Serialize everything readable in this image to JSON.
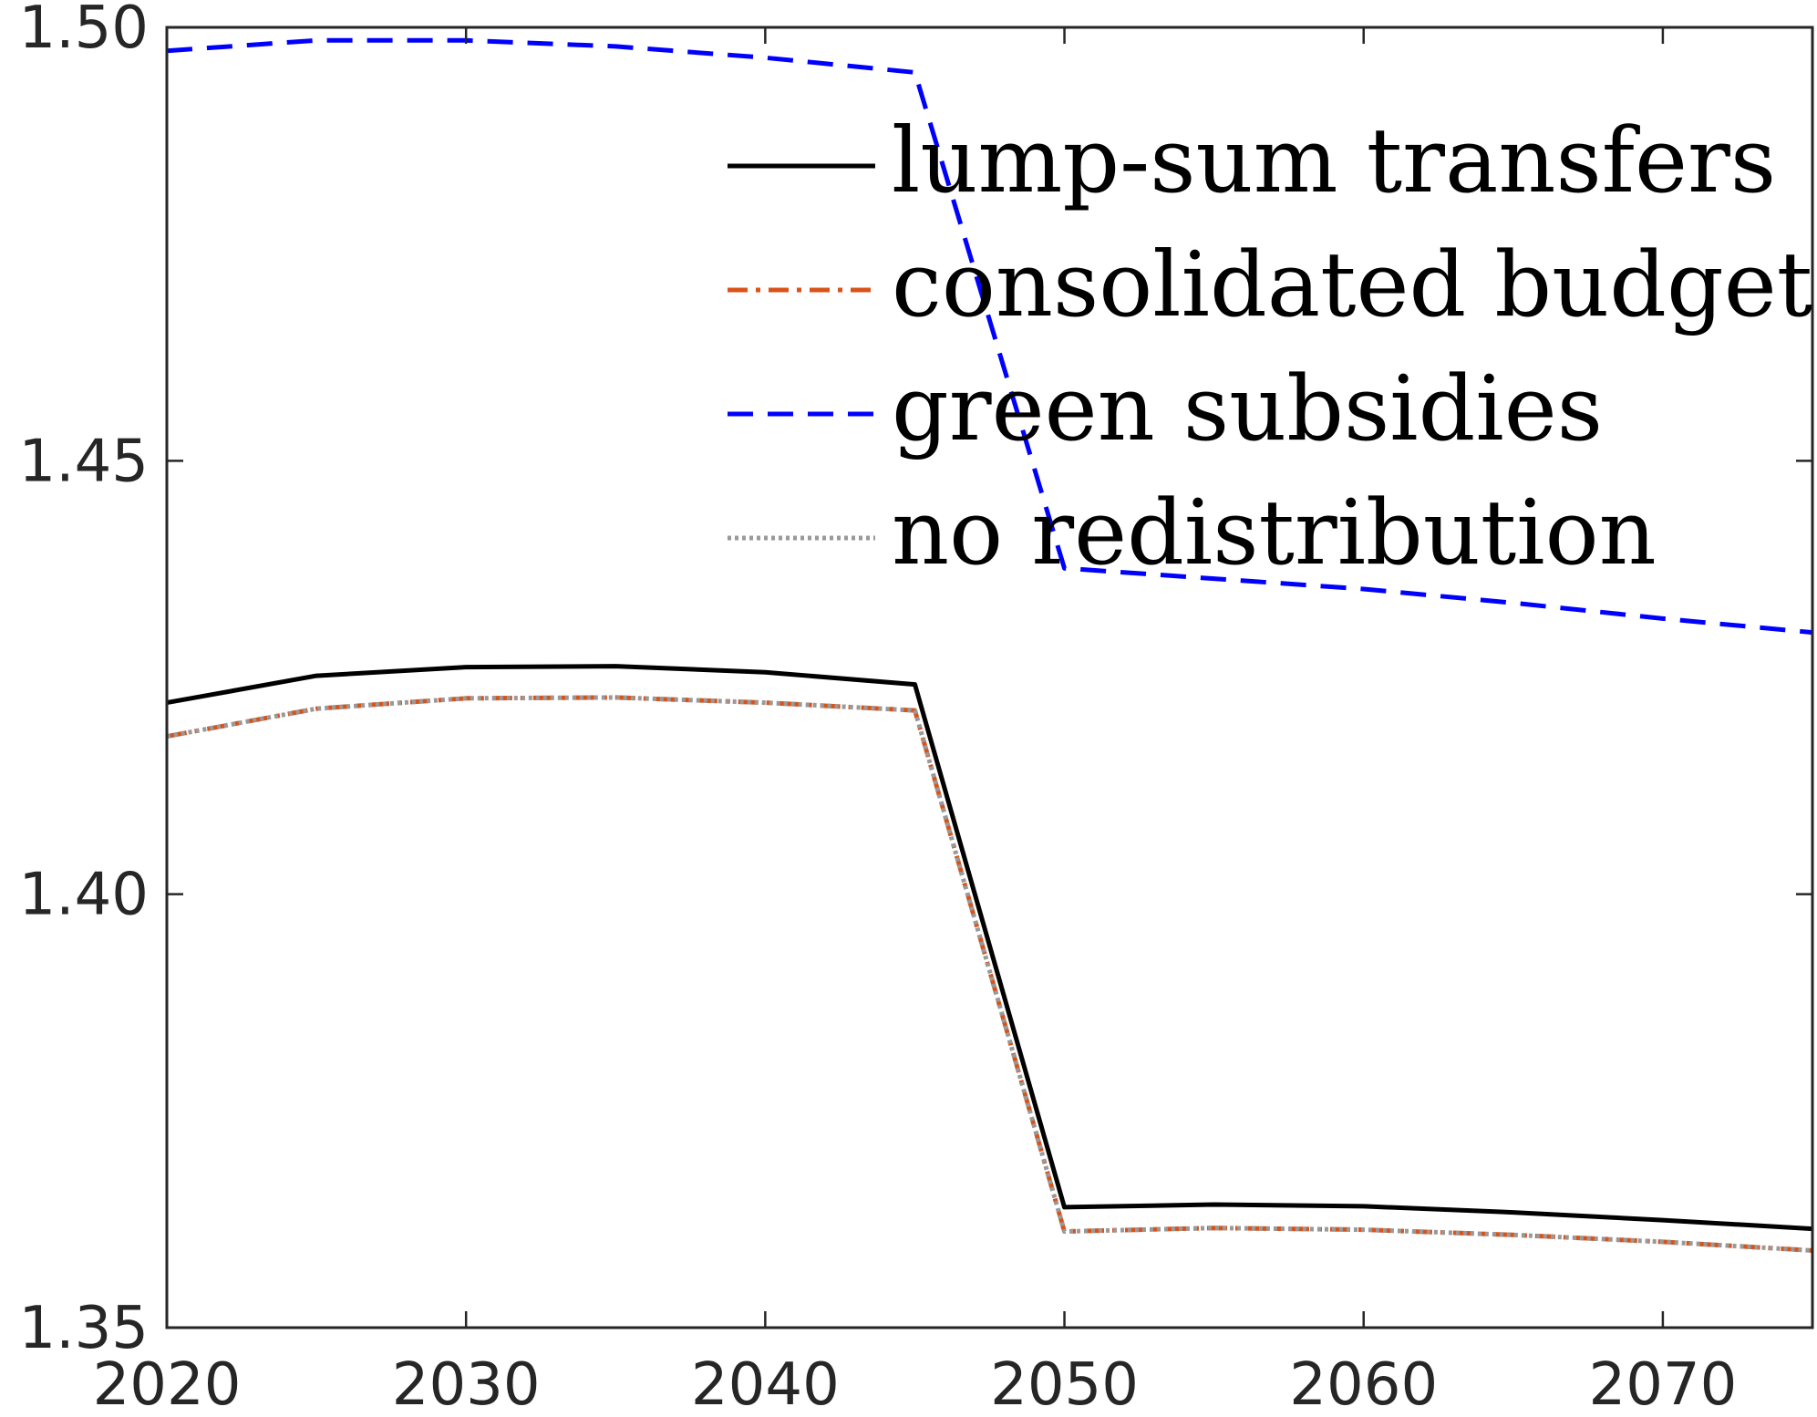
{
  "chart_data": {
    "type": "line",
    "title": "",
    "xlabel": "",
    "ylabel": "",
    "xlim": [
      2020,
      2075
    ],
    "ylim": [
      1.35,
      1.5
    ],
    "grid": false,
    "legend_position": "top-right",
    "x_ticks": [
      "2020",
      "2030",
      "2040",
      "2050",
      "2060",
      "2070"
    ],
    "x_tick_values": [
      2020,
      2030,
      2040,
      2050,
      2060,
      2070
    ],
    "y_ticks": [
      "1.35",
      "1.40",
      "1.45",
      "1.50"
    ],
    "y_tick_values": [
      1.35,
      1.4,
      1.45,
      1.5
    ],
    "x": [
      2020,
      2025,
      2030,
      2035,
      2040,
      2045,
      2050,
      2055,
      2060,
      2065,
      2070,
      2075
    ],
    "series": [
      {
        "name": "lump-sum transfers",
        "color": "#000000",
        "style": "solid",
        "values": [
          1.4221,
          1.4252,
          1.4262,
          1.4263,
          1.4256,
          1.4242,
          1.3639,
          1.3642,
          1.364,
          1.3633,
          1.3624,
          1.3614
        ]
      },
      {
        "name": "consolidated budget",
        "color": "#D95319",
        "style": "dashdot",
        "values": [
          1.4182,
          1.4214,
          1.4226,
          1.4227,
          1.4221,
          1.4212,
          1.3611,
          1.3615,
          1.3613,
          1.3607,
          1.3599,
          1.3589
        ]
      },
      {
        "name": "green subsidies",
        "color": "#0000FF",
        "style": "dashed",
        "values": [
          1.4973,
          1.4985,
          1.4985,
          1.4978,
          1.4965,
          1.4948,
          1.4376,
          1.4364,
          1.4352,
          1.4336,
          1.4318,
          1.4302
        ]
      },
      {
        "name": "no redistribution",
        "color": "#999999",
        "style": "dotted",
        "values": [
          1.4182,
          1.4214,
          1.4226,
          1.4227,
          1.4221,
          1.4212,
          1.3611,
          1.3615,
          1.3613,
          1.3607,
          1.3599,
          1.3589
        ]
      }
    ]
  }
}
